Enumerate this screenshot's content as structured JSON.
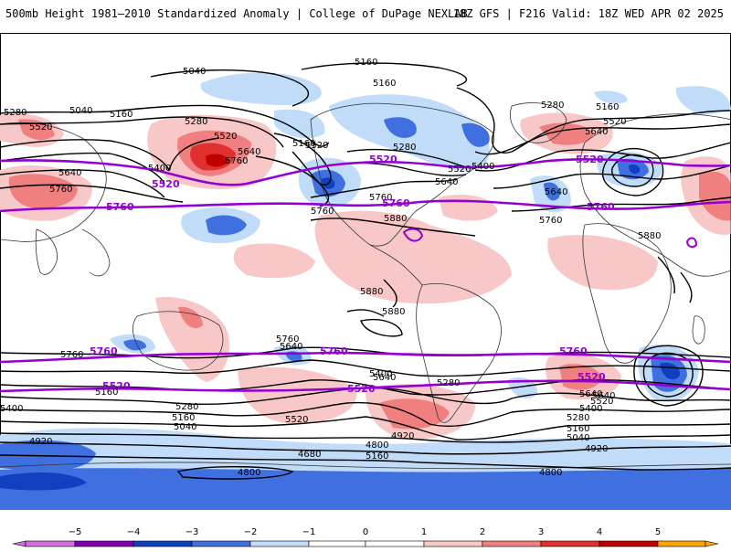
{
  "header": {
    "title": "500mb Height 1981–2010 Standardized Anomaly | College of DuPage NEXLAB",
    "run_info": "18Z GFS | F216 Valid: 18Z WED APR 02 2025"
  },
  "colors": {
    "contour_black": "#000000",
    "contour_purple": "#9400d3",
    "land_outline": "#333333",
    "anom_neg5": "#d070d8",
    "anom_neg4": "#8000b0",
    "anom_neg3": "#1040c0",
    "anom_neg2": "#4070e0",
    "anom_neg1": "#c0dcf8",
    "anom_pos1": "#f8c8c8",
    "anom_pos2": "#f08080",
    "anom_pos3": "#e03030",
    "anom_pos4": "#c00000",
    "anom_pos5": "#ffa500"
  },
  "contours": {
    "labels_north": [
      "5040",
      "5160",
      "5160",
      "5280",
      "5040",
      "5160",
      "5520",
      "5280",
      "5520",
      "5640",
      "5760",
      "5400",
      "5640",
      "5760",
      "5520",
      "5760",
      "5160",
      "5280",
      "5520",
      "5400",
      "5640",
      "5760",
      "5880",
      "5280",
      "5160",
      "5520",
      "5640",
      "5640",
      "5760",
      "5880"
    ],
    "labels_south": [
      "5880",
      "5880",
      "5760",
      "5640",
      "5760",
      "5640",
      "5160",
      "5280",
      "5400",
      "5400",
      "5520",
      "5160",
      "5040",
      "4920",
      "4800",
      "4680",
      "4800",
      "5160",
      "4920",
      "5280",
      "5640",
      "5640",
      "5520",
      "5400",
      "5280",
      "5160",
      "5040",
      "4920",
      "4800"
    ],
    "purple_labels": [
      "5520",
      "5520",
      "5520",
      "5760",
      "5760",
      "5760",
      "5760",
      "5760",
      "5760",
      "5520",
      "5520",
      "5520"
    ]
  },
  "colorbar": {
    "ticks": [
      "−5",
      "−4",
      "−3",
      "−2",
      "−1",
      "0",
      "1",
      "2",
      "3",
      "4",
      "5"
    ]
  }
}
